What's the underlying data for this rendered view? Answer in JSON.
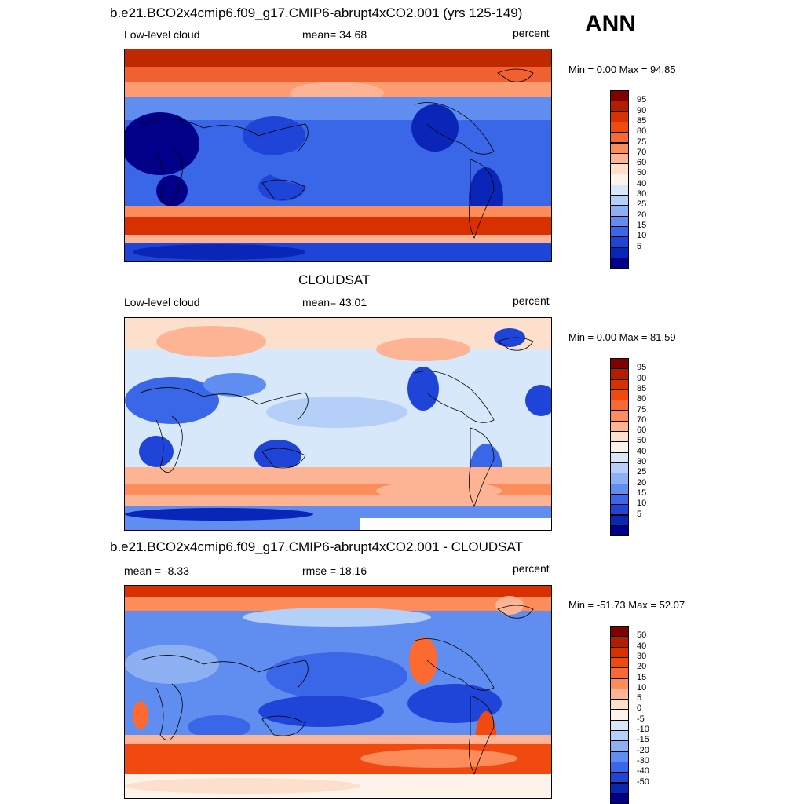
{
  "season": "ANN",
  "panels": [
    {
      "id": "model",
      "title": "b.e21.BCO2x4cmip6.f09_g17.CMIP6-abrupt4xCO2.001 (yrs 125-149)",
      "left_label": "Low-level cloud",
      "center_label": "mean=  34.68",
      "right_label": "percent",
      "minmax": "Min =   0.00 Max =  94.85",
      "palette": "abs"
    },
    {
      "id": "obs",
      "title": "CLOUDSAT",
      "left_label": "Low-level cloud",
      "center_label": "mean=  43.01",
      "right_label": "percent",
      "minmax": "Min =   0.00 Max =  81.59",
      "palette": "abs"
    },
    {
      "id": "diff",
      "title": "b.e21.BCO2x4cmip6.f09_g17.CMIP6-abrupt4xCO2.001 - CLOUDSAT",
      "left_label": "mean =  -8.33",
      "center_label": "rmse =  18.16",
      "right_label": "percent",
      "minmax": "Min = -51.73 Max =  52.07",
      "palette": "diff"
    }
  ],
  "colorbars": {
    "abs": {
      "labels": [
        "95",
        "90",
        "85",
        "80",
        "75",
        "70",
        "60",
        "50",
        "40",
        "30",
        "25",
        "20",
        "15",
        "10",
        "5"
      ],
      "colors": [
        "#800000",
        "#b31e00",
        "#d83000",
        "#f04a10",
        "#fa6a30",
        "#fc8c5a",
        "#fdb494",
        "#fde0cc",
        "#fdf3ea",
        "#d8e8fb",
        "#b4d0f8",
        "#8cb0f2",
        "#5f8ef0",
        "#3a66e8",
        "#1f44d8",
        "#0a26b8",
        "#000088"
      ]
    },
    "diff": {
      "labels": [
        "50",
        "40",
        "30",
        "20",
        "15",
        "10",
        "5",
        "0",
        "-5",
        "-10",
        "-15",
        "-20",
        "-30",
        "-40",
        "-50"
      ],
      "colors": [
        "#800000",
        "#b31e00",
        "#d83000",
        "#f04a10",
        "#fa6a30",
        "#fc8c5a",
        "#fdb494",
        "#fde0cc",
        "#fdf3ea",
        "#d8e8fb",
        "#b4d0f8",
        "#8cb0f2",
        "#5f8ef0",
        "#3a66e8",
        "#1f44d8",
        "#0a26b8",
        "#000088"
      ]
    }
  }
}
